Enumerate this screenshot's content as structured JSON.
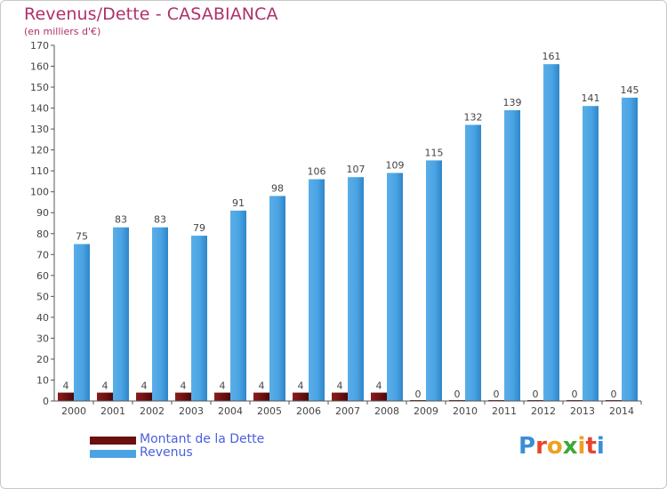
{
  "chart_data": {
    "type": "bar",
    "title": "Revenus/Dette - CASABIANCA",
    "subtitle": "(en milliers d'€)",
    "categories": [
      "2000",
      "2001",
      "2002",
      "2003",
      "2004",
      "2005",
      "2006",
      "2007",
      "2008",
      "2009",
      "2010",
      "2011",
      "2012",
      "2013",
      "2014"
    ],
    "series": [
      {
        "name": "Montant de la Dette",
        "color": "#6b0f0f",
        "values": [
          4,
          4,
          4,
          4,
          4,
          4,
          4,
          4,
          4,
          0,
          0,
          0,
          0,
          0,
          0
        ]
      },
      {
        "name": "Revenus",
        "color": "#4aa3e3",
        "values": [
          75,
          83,
          83,
          79,
          91,
          98,
          106,
          107,
          109,
          115,
          132,
          139,
          161,
          141,
          145
        ]
      }
    ],
    "ylim": [
      0,
      170
    ],
    "yticks": [
      0,
      10,
      20,
      30,
      40,
      50,
      60,
      70,
      80,
      90,
      100,
      110,
      120,
      130,
      140,
      150,
      160,
      170
    ],
    "grid": false,
    "legend": "bottom-left"
  },
  "logo": {
    "letters": [
      "P",
      "r",
      "o",
      "x",
      "i",
      "t",
      "i"
    ],
    "colors": [
      "#3a8fd6",
      "#e8452c",
      "#f0a020",
      "#3aaa3a",
      "#f0a020",
      "#e8452c",
      "#3a8fd6"
    ]
  }
}
